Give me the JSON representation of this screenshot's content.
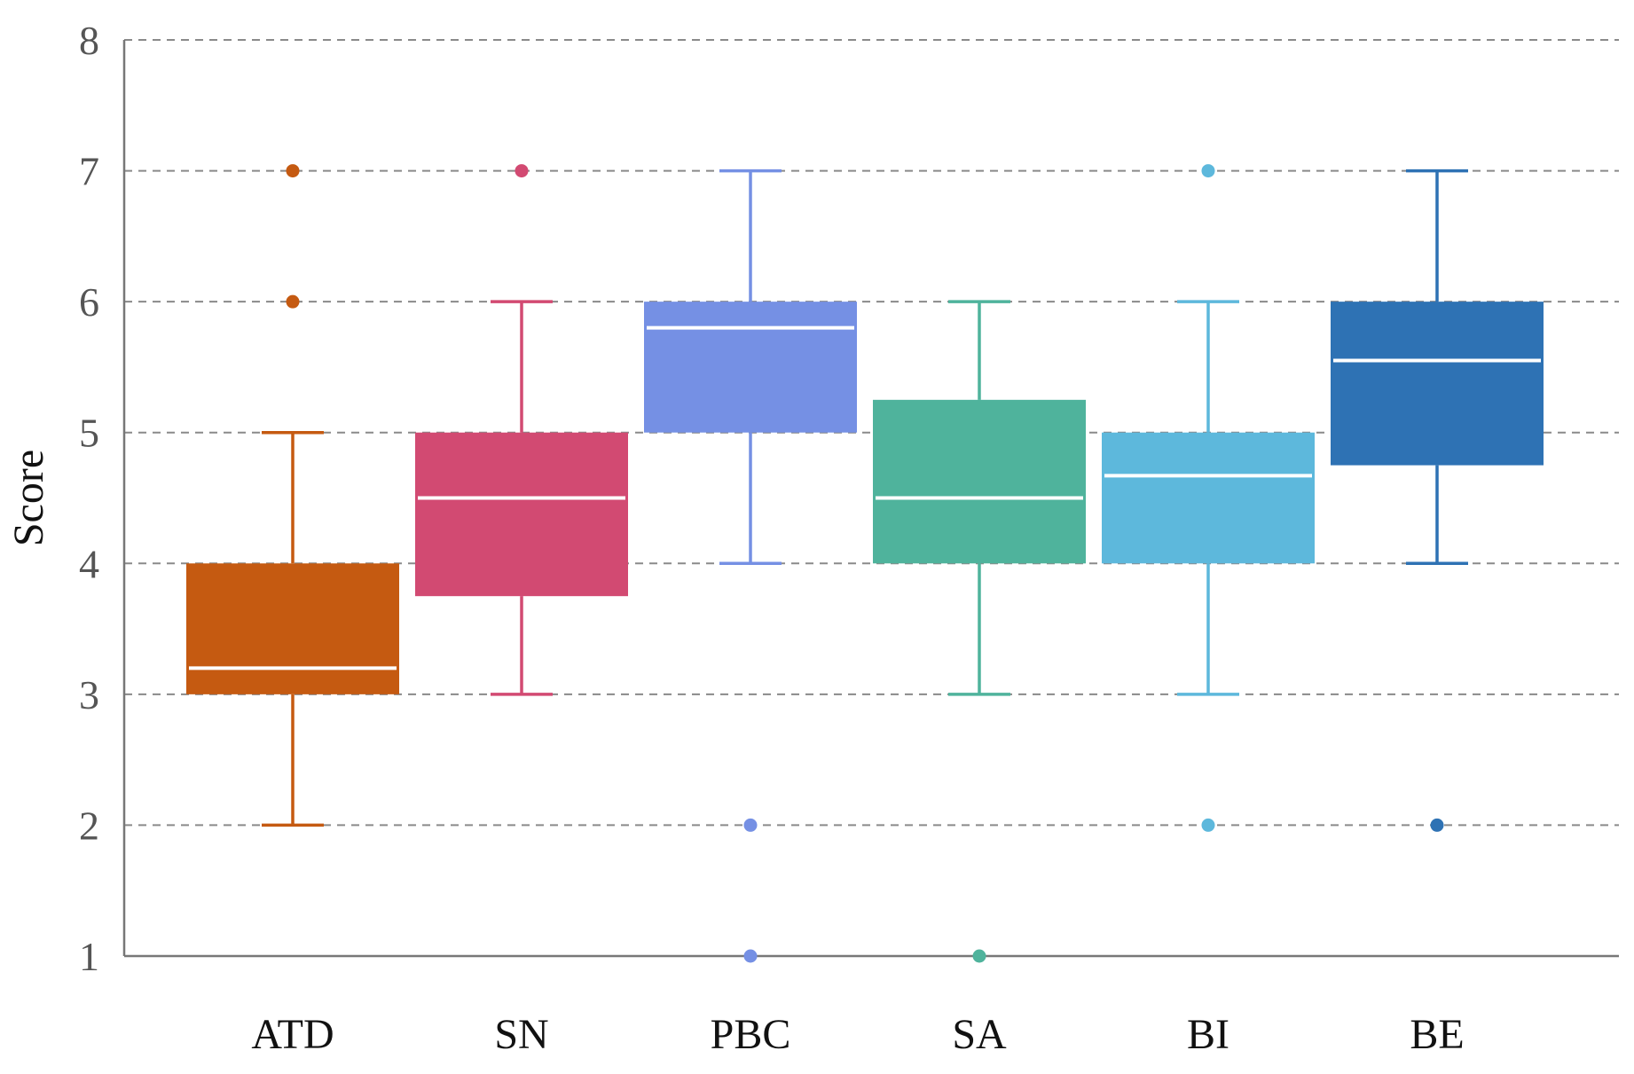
{
  "chart_data": {
    "type": "boxplot",
    "title": "",
    "xlabel": "",
    "ylabel": "Score",
    "ylim": [
      1,
      8
    ],
    "yticks": [
      1,
      2,
      3,
      4,
      5,
      6,
      7,
      8
    ],
    "grid": "horizontal dashed",
    "categories": [
      "ATD",
      "SN",
      "PBC",
      "SA",
      "BI",
      "BE"
    ],
    "series": [
      {
        "name": "ATD",
        "color": "#C55A11",
        "whisker_low": 2,
        "q1": 3,
        "median": 3.2,
        "q3": 4,
        "whisker_high": 5,
        "outliers": [
          6,
          7
        ]
      },
      {
        "name": "SN",
        "color": "#D24A72",
        "whisker_low": 3,
        "q1": 3.75,
        "median": 4.5,
        "q3": 5,
        "whisker_high": 6,
        "outliers": [
          7
        ]
      },
      {
        "name": "PBC",
        "color": "#7590E4",
        "whisker_low": 4,
        "q1": 5,
        "median": 5.8,
        "q3": 6,
        "whisker_high": 7,
        "outliers": [
          2,
          1
        ]
      },
      {
        "name": "SA",
        "color": "#4FB39C",
        "whisker_low": 3,
        "q1": 4,
        "median": 4.5,
        "q3": 5.25,
        "whisker_high": 6,
        "outliers": [
          1
        ]
      },
      {
        "name": "BI",
        "color": "#5DB8DC",
        "whisker_low": 3,
        "q1": 4,
        "median": 4.67,
        "q3": 5,
        "whisker_high": 6,
        "outliers": [
          7,
          2
        ]
      },
      {
        "name": "BE",
        "color": "#2E72B4",
        "whisker_low": 4,
        "q1": 4.75,
        "median": 5.55,
        "q3": 6,
        "whisker_high": 7,
        "outliers": [
          2
        ]
      }
    ]
  }
}
